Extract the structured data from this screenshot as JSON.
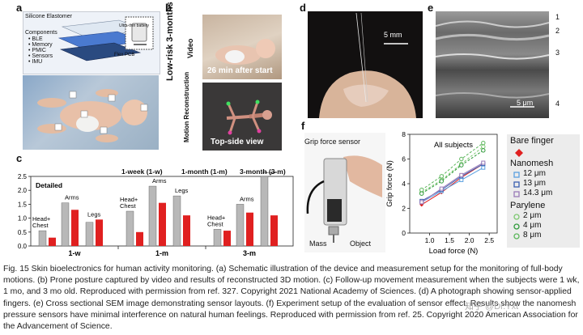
{
  "panels": {
    "a": {
      "label": "a",
      "layers": [
        "Silicone Elastomer",
        "Components",
        "• BLE",
        "• Memory",
        "• PMIC",
        "• Sensors",
        "• IMU"
      ],
      "battery": "Ultra-thin battery",
      "pcb": "Flex PCB"
    },
    "b": {
      "label": "b",
      "side_title": "Low-risk 3-months",
      "video_label": "Video",
      "motion_label": "Motion Reconstruction",
      "video_time": "26 min after start",
      "recon_view": "Top-side view"
    },
    "d": {
      "label": "d",
      "scale": "5 mm"
    },
    "e": {
      "label": "e",
      "scale": "5 μm",
      "layer_numbers": [
        "1",
        "2",
        "3",
        "4"
      ]
    },
    "f": {
      "label": "f",
      "sensor_label": "Grip force sensor",
      "mass_label": "Mass",
      "object_label": "Object"
    }
  },
  "chart_c": {
    "label": "c",
    "title_detailed": "Detailed",
    "legend": [
      "1-week (1-w)",
      "1-month (1-m)",
      "3-month (3-m)"
    ],
    "group_labels": [
      "1-w",
      "1-m",
      "3-m"
    ],
    "part_labels": [
      "Head+\nChest",
      "Arms",
      "Legs"
    ],
    "y_ticks": [
      "0.0",
      "0.5",
      "1.0",
      "1.5",
      "2.0",
      "2.5"
    ],
    "colors": {
      "gray": "#b8b8b8",
      "red": "#e02020"
    }
  },
  "chart_data": [
    {
      "type": "bar",
      "title": "",
      "ylim": [
        0,
        2.5
      ],
      "categories": [
        "1-w Head+Chest",
        "1-w Arms",
        "1-w Legs",
        "1-m Head+Chest",
        "1-m Arms",
        "1-m Legs",
        "3-m Head+Chest",
        "3-m Arms",
        "3-m Legs"
      ],
      "series": [
        {
          "values": [
            0.55,
            1.55,
            0.85,
            1.25,
            2.15,
            1.8,
            0.6,
            1.5,
            2.5
          ]
        },
        {
          "values": [
            0.3,
            1.3,
            0.95,
            0.5,
            1.55,
            1.1,
            0.55,
            1.2,
            1.1
          ]
        }
      ]
    },
    {
      "type": "line",
      "title": "All subjects",
      "xlabel": "Load force (N)",
      "ylabel": "Grip force (N)",
      "xlim": [
        0.5,
        2.7
      ],
      "ylim": [
        0,
        8
      ],
      "x_ticks": [
        "1.0",
        "1.5",
        "2.0",
        "2.5"
      ],
      "y_ticks": [
        "0",
        "2",
        "4",
        "6",
        "8"
      ],
      "x": [
        0.8,
        1.3,
        1.8,
        2.35
      ],
      "series": [
        {
          "name": "Bare finger",
          "color": "#e02020",
          "marker": "diamond",
          "values": [
            2.3,
            3.3,
            4.5,
            5.6
          ]
        },
        {
          "name": "12 μm",
          "color": "#5aa0e0",
          "marker": "square",
          "values": [
            2.5,
            3.4,
            4.3,
            5.3
          ]
        },
        {
          "name": "13 μm",
          "color": "#3a5fb0",
          "marker": "square",
          "values": [
            2.6,
            3.5,
            4.6,
            5.6
          ]
        },
        {
          "name": "14.3 μm",
          "color": "#9a7ab8",
          "marker": "square",
          "values": [
            2.5,
            3.6,
            4.7,
            5.7
          ]
        },
        {
          "name": "2 μm",
          "color": "#7cc870",
          "marker": "circle",
          "values": [
            3.3,
            4.3,
            5.6,
            7.0
          ]
        },
        {
          "name": "4 μm",
          "color": "#2f9a3a",
          "marker": "circle",
          "values": [
            3.2,
            4.2,
            5.5,
            6.7
          ]
        },
        {
          "name": "8 μm",
          "color": "#5ab65a",
          "marker": "circle",
          "values": [
            3.5,
            4.6,
            6.0,
            7.3
          ]
        }
      ]
    }
  ],
  "chart_f_legend": {
    "bare": "Bare finger",
    "nanomesh": "Nanomesh",
    "nano_items": [
      "12 μm",
      "13 μm",
      "14.3 μm"
    ],
    "parylene": "Parylene",
    "pary_items": [
      "2 μm",
      "4 μm",
      "8 μm"
    ]
  },
  "caption": "Fig. 15  Skin bioelectronics for human activity monitoring. (a) Schematic illustration of the device and measurement setup for the monitoring of full-body motions. (b) Prone posture captured by video and results of reconstructed 3D motion. (c) Follow-up movement measurement when the subjects were 1 wk, 1 mo, and 3 mo old. Reproduced with permission from ref. 327. Copyright 2021 National Academy of Sciences. (d) A photograph showing sensor-applied fingers. (e) Cross sectional SEM image demonstrating sensor layouts. (f) Experiment setup of the evaluation of sensor effect. Results show the nanomesh pressure sensors have minimal interference on natural human feelings. Reproduced with permission from ref. 25. Copyright 2020 American Association for the Advancement of Science.",
  "watermark": "知乎 @Dr.Yxt"
}
